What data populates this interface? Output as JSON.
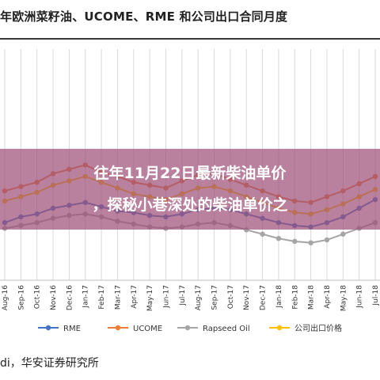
{
  "page": {
    "title": "年欧洲菜籽油、UCOME、RME 和公司出口合同月度",
    "overlay_line1": "往年11月22日最新柴油单价",
    "overlay_line2": "，探秘小巷深处的柴油单价之",
    "source": "di，华安证券研究所"
  },
  "colors": {
    "RME": "#4472c4",
    "UCOME": "#ed7d31",
    "Rapseed Oil": "#a5a5a5",
    "公司出口价格": "#ffc000",
    "grid": "#d9d9d9"
  },
  "chart_data": {
    "type": "line",
    "title": "",
    "xlabel": "",
    "ylabel": "",
    "x": [
      "Aug-16",
      "Sep-16",
      "Oct-16",
      "Nov-16",
      "Dec-16",
      "Jan-17",
      "Feb-17",
      "Mar-17",
      "Apr-17",
      "May-17",
      "Jun-17",
      "Jul-17",
      "Aug-17",
      "Sep-17",
      "Oct-17",
      "Nov-17",
      "Dec-17",
      "Jan-18",
      "Feb-18",
      "Mar-18",
      "Apr-18",
      "May-18",
      "Jun-18",
      "Jul-18"
    ],
    "x_visible_from_index": 0,
    "legend_position": "bottom",
    "grid": true,
    "ylim": [
      0,
      100
    ],
    "series": [
      {
        "name": "RME",
        "values": [
          40,
          44,
          46,
          50,
          52,
          54,
          51,
          48,
          47,
          45,
          44,
          46,
          49,
          50,
          49,
          46,
          43,
          40,
          38,
          37,
          40,
          44,
          50,
          56
        ]
      },
      {
        "name": "UCOME",
        "values": [
          62,
          65,
          68,
          74,
          77,
          80,
          75,
          72,
          68,
          66,
          64,
          69,
          73,
          74,
          70,
          66,
          62,
          58,
          55,
          54,
          58,
          62,
          67,
          72
        ]
      },
      {
        "name": "Rapseed Oil",
        "values": [
          36,
          38,
          40,
          43,
          45,
          46,
          44,
          41,
          39,
          37,
          36,
          37,
          39,
          40,
          38,
          35,
          32,
          29,
          27,
          26,
          28,
          32,
          36,
          40
        ]
      },
      {
        "name": "公司出口价格",
        "values": [
          55,
          58,
          61,
          66,
          69,
          72,
          68,
          64,
          60,
          58,
          56,
          60,
          64,
          65,
          62,
          58,
          54,
          50,
          47,
          46,
          49,
          53,
          58,
          63
        ]
      }
    ]
  }
}
